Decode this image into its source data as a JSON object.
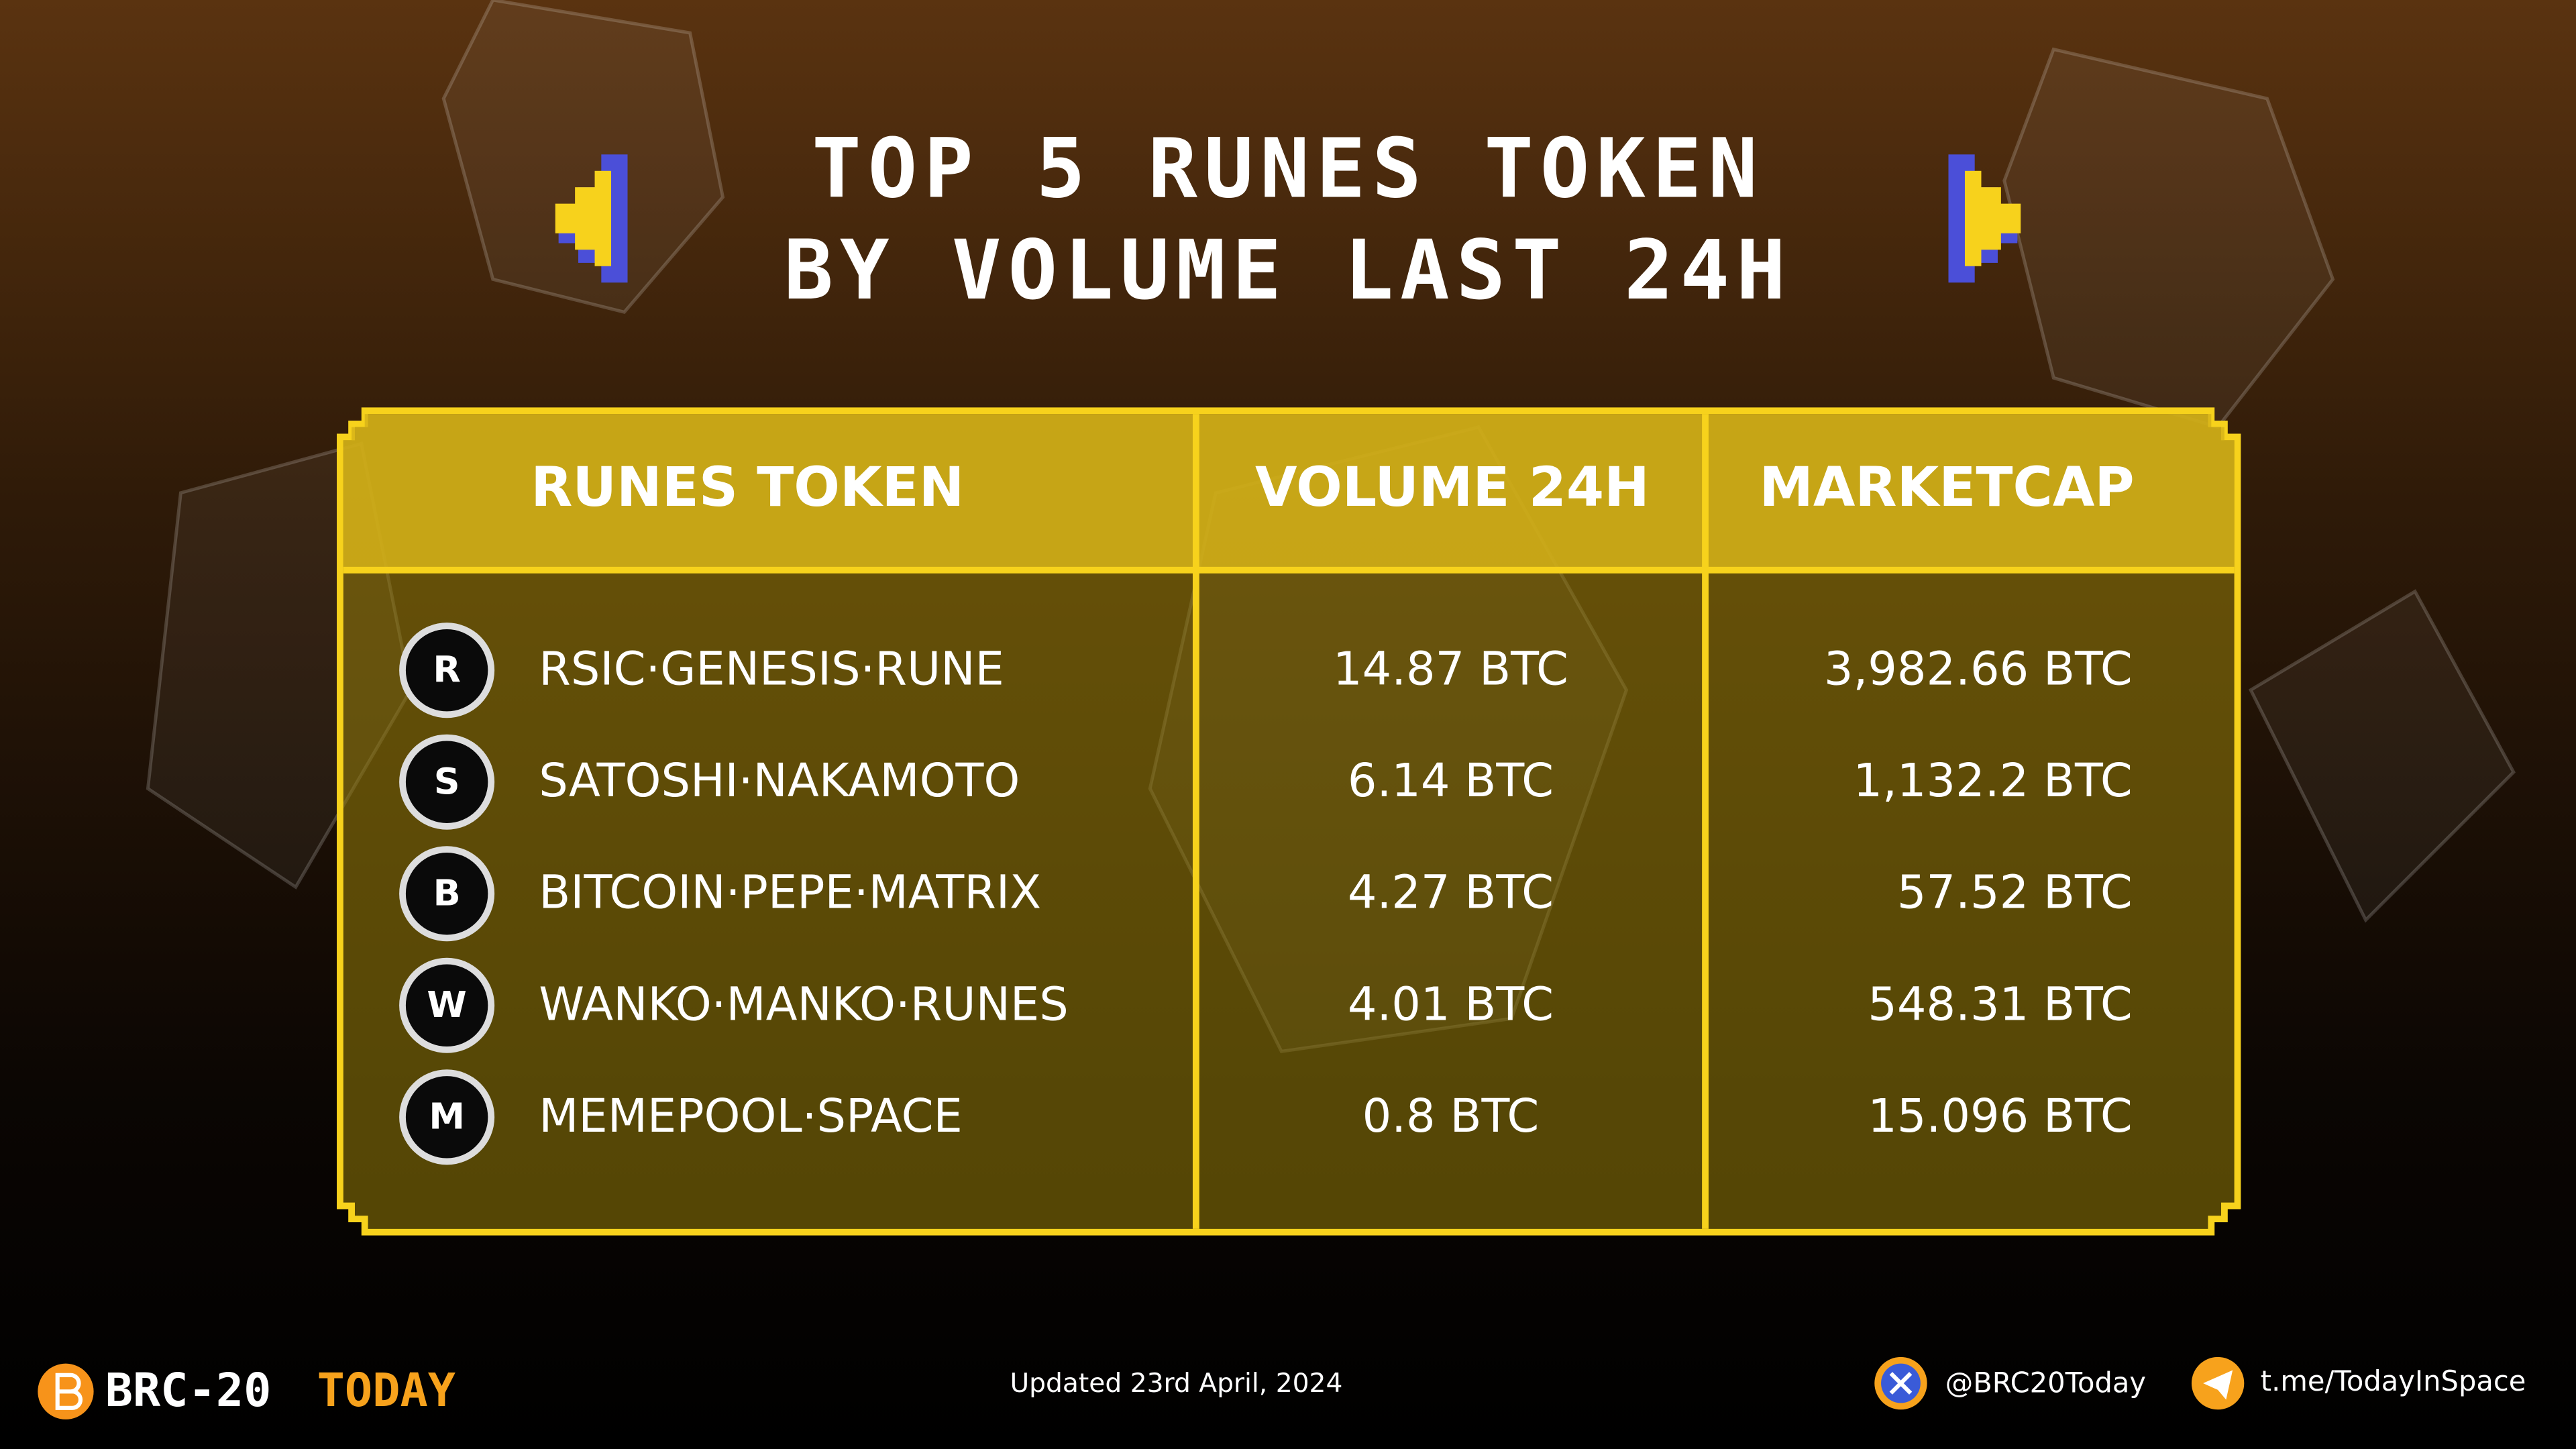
{
  "header": {
    "title_lines": [
      "TOP 5 RUNES TOKEN",
      "BY VOLUME LAST 24H"
    ]
  },
  "table": {
    "columns": [
      "RUNES TOKEN",
      "VOLUME 24H",
      "MARKETCAP"
    ],
    "rows": [
      {
        "icon": "R",
        "name": "RSIC·GENESIS·RUNE",
        "volume": "14.87 BTC",
        "marketcap": "3,982.66 BTC"
      },
      {
        "icon": "S",
        "name": "SATOSHI·NAKAMOTO",
        "volume": "6.14 BTC",
        "marketcap": "1,132.2 BTC"
      },
      {
        "icon": "B",
        "name": "BITCOIN·PEPE·MATRIX",
        "volume": "4.27 BTC",
        "marketcap": "57.52 BTC"
      },
      {
        "icon": "W",
        "name": "WANKO·MANKO·RUNES",
        "volume": "4.01 BTC",
        "marketcap": "548.31 BTC"
      },
      {
        "icon": "M",
        "name": "MEMEPOOL·SPACE",
        "volume": "0.8 BTC",
        "marketcap": "15.096 BTC"
      }
    ]
  },
  "footer": {
    "brand": [
      "BRC-20",
      "TODAY"
    ],
    "updated": "Updated 23rd April, 2024",
    "twitter": "@BRC20Today",
    "telegram": "t.me/TodayInSpace"
  }
}
